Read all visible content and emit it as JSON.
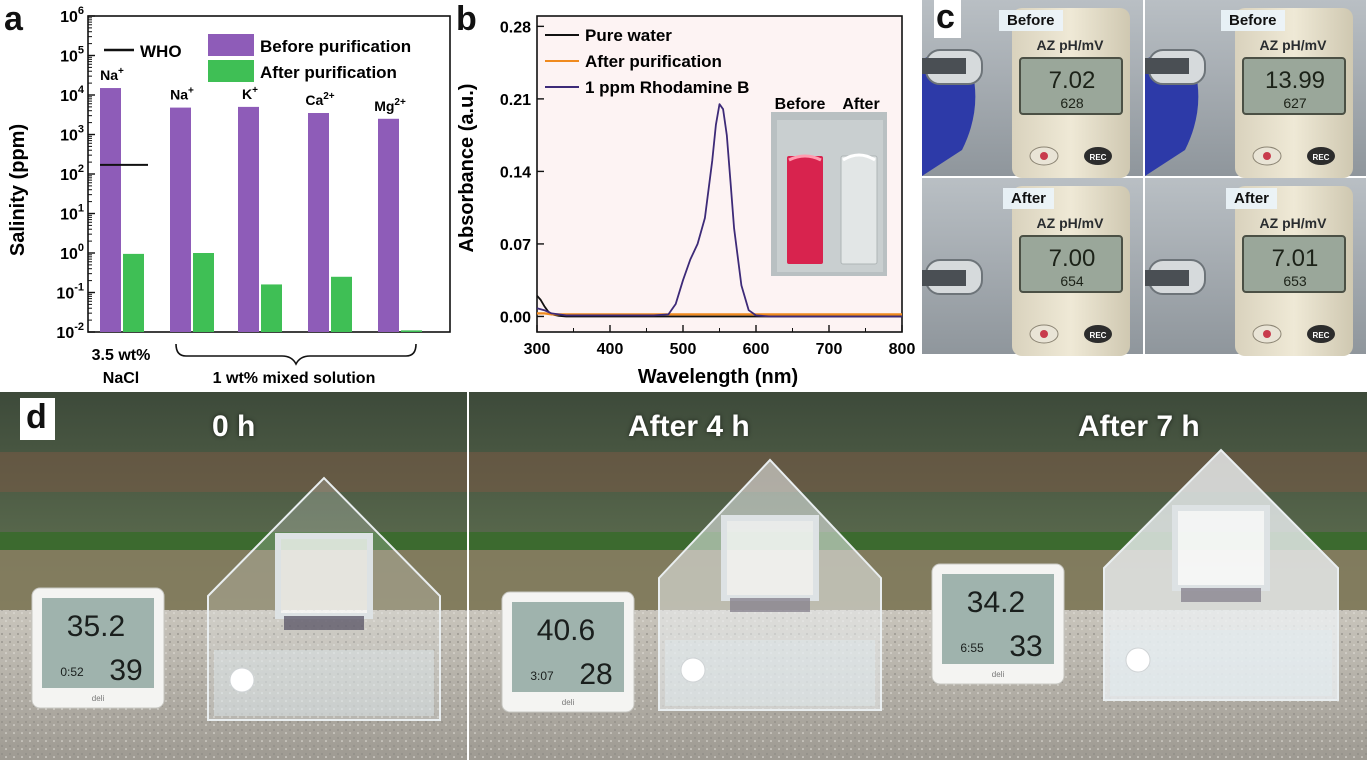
{
  "panels": {
    "a": "a",
    "b": "b",
    "c": "c",
    "d": "d"
  },
  "chart_data": [
    {
      "type": "bar",
      "panel": "a",
      "ylabel": "Salinity (ppm)",
      "yscale": "log",
      "ylim": [
        0.01,
        1000000
      ],
      "yticks": [
        {
          "v": 0.01,
          "base": "10",
          "exp": "-2"
        },
        {
          "v": 0.1,
          "base": "10",
          "exp": "-1"
        },
        {
          "v": 1,
          "base": "10",
          "exp": "0"
        },
        {
          "v": 10,
          "base": "10",
          "exp": "1"
        },
        {
          "v": 100,
          "base": "10",
          "exp": "2"
        },
        {
          "v": 1000,
          "base": "10",
          "exp": "3"
        },
        {
          "v": 10000,
          "base": "10",
          "exp": "4"
        },
        {
          "v": 100000,
          "base": "10",
          "exp": "5"
        },
        {
          "v": 1000000,
          "base": "10",
          "exp": "6"
        }
      ],
      "categories": [
        {
          "ion": "Na",
          "charge": "+"
        },
        {
          "ion": "Na",
          "charge": "+"
        },
        {
          "ion": "K",
          "charge": "+"
        },
        {
          "ion": "Ca",
          "charge": "2+"
        },
        {
          "ion": "Mg",
          "charge": "2+"
        }
      ],
      "series": [
        {
          "name": "Before purification",
          "color": "#8e5cb8",
          "values": [
            15000,
            4800,
            5000,
            3500,
            2500
          ]
        },
        {
          "name": "After purification",
          "color": "#3fbf55",
          "values": [
            0.95,
            1.0,
            0.16,
            0.25,
            0.011
          ]
        }
      ],
      "reference_line": {
        "name": "WHO",
        "value": 170,
        "category_index": 0,
        "color": "#111111"
      },
      "group_labels": [
        {
          "line1": "3.5 wt%",
          "line2": "NaCl"
        },
        {
          "line1": "1 wt% mixed solution"
        }
      ],
      "legend": "top"
    },
    {
      "type": "line",
      "panel": "b",
      "xlabel": "Wavelength (nm)",
      "ylabel": "Absorbance (a.u.)",
      "xlim": [
        300,
        800
      ],
      "ylim": [
        -0.015,
        0.29
      ],
      "xticks": [
        300,
        400,
        500,
        600,
        700,
        800
      ],
      "yticks": [
        0.0,
        0.07,
        0.14,
        0.21,
        0.28
      ],
      "ytick_labels": [
        "0.00",
        "0.07",
        "0.14",
        "0.21",
        "0.28"
      ],
      "series": [
        {
          "name": "Pure water",
          "color": "#111111",
          "x": [
            300,
            305,
            310,
            315,
            320,
            330,
            340,
            800
          ],
          "y": [
            0.02,
            0.016,
            0.01,
            0.005,
            0.002,
            0.0005,
            0,
            0
          ]
        },
        {
          "name": "After purification",
          "color": "#f08a1e",
          "x": [
            300,
            310,
            320,
            330,
            340,
            350,
            360,
            370,
            380,
            390,
            400,
            420,
            440,
            460,
            480,
            500,
            520,
            540,
            560,
            580,
            600,
            620,
            640,
            660,
            680,
            700,
            720,
            740,
            760,
            780,
            800
          ],
          "y": [
            0.003,
            0.003,
            0.002,
            0.002,
            0.002,
            0.002,
            0.002,
            0.002,
            0.002,
            0.002,
            0.002,
            0.002,
            0.002,
            0.002,
            0.002,
            0.002,
            0.002,
            0.002,
            0.002,
            0.002,
            0.002,
            0.002,
            0.002,
            0.002,
            0.002,
            0.002,
            0.002,
            0.002,
            0.002,
            0.002,
            0.002
          ]
        },
        {
          "name": "1 ppm Rhodamine B",
          "color": "#3d2a78",
          "x": [
            300,
            310,
            320,
            330,
            340,
            350,
            360,
            370,
            380,
            390,
            400,
            420,
            440,
            460,
            480,
            490,
            500,
            510,
            520,
            530,
            540,
            545,
            550,
            555,
            560,
            565,
            570,
            580,
            590,
            600,
            620,
            640,
            660,
            680,
            700,
            720,
            740,
            760,
            780,
            800
          ],
          "y": [
            0.008,
            0.006,
            0.003,
            0.002,
            0.001,
            0.001,
            0.001,
            0.001,
            0.001,
            0.001,
            0.001,
            0.001,
            0.001,
            0.001,
            0.002,
            0.012,
            0.035,
            0.055,
            0.07,
            0.095,
            0.15,
            0.185,
            0.205,
            0.2,
            0.175,
            0.13,
            0.085,
            0.03,
            0.006,
            0.001,
            0,
            0,
            0,
            0,
            0,
            0,
            0,
            0,
            0,
            0
          ]
        }
      ],
      "inset": {
        "labels": [
          "Before",
          "After"
        ],
        "colors": {
          "sample": "#d8234e",
          "clear": "#e2e6e6"
        }
      },
      "legend": "top-left"
    }
  ],
  "panel_c": {
    "labels": [
      "Before",
      "Before",
      "After",
      "After"
    ],
    "meter_brand": "AZ pH/mV",
    "readings": [
      {
        "main": "7.02",
        "sub": "628"
      },
      {
        "main": "13.99",
        "sub": "627"
      },
      {
        "main": "7.00",
        "sub": "654"
      },
      {
        "main": "7.01",
        "sub": "653"
      }
    ],
    "button_label": "REC"
  },
  "panel_d": {
    "times": [
      "0 h",
      "After 4 h",
      "After 7 h"
    ],
    "temperatures": [
      "35.2",
      "40.6",
      "34.2"
    ],
    "humidities": [
      "39",
      "28",
      "33"
    ],
    "clock": [
      "0:52",
      "3:07",
      "6:55"
    ],
    "brand": "deli"
  }
}
